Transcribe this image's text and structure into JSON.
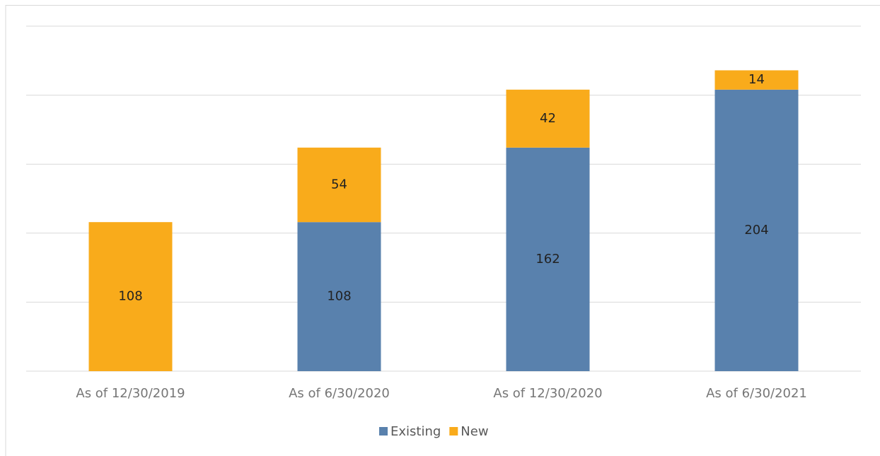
{
  "chart_data": {
    "type": "stacked_bar",
    "categories": [
      "As of 12/30/2019",
      "As of 6/30/2020",
      "As of 12/30/2020",
      "As of 6/30/2021"
    ],
    "series": [
      {
        "name": "Existing",
        "color": "#5981ad",
        "values": [
          null,
          108,
          162,
          204
        ]
      },
      {
        "name": "New",
        "color": "#f9ab1b",
        "values": [
          108,
          54,
          42,
          14
        ]
      }
    ],
    "ylim": [
      0,
      250
    ],
    "yticks": [
      0,
      50,
      100,
      150,
      200,
      250
    ],
    "grid": true,
    "legend": "bottom"
  }
}
